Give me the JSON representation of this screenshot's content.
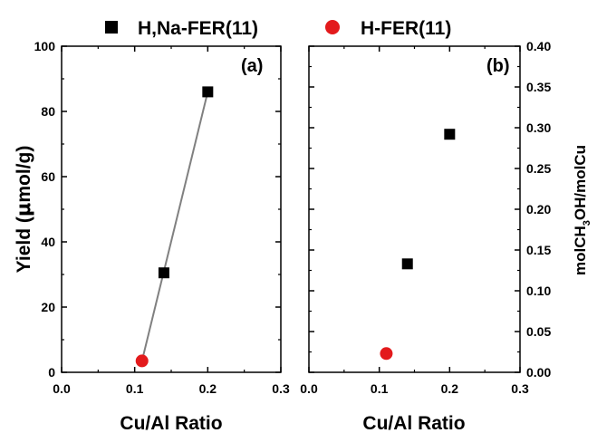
{
  "legend": [
    {
      "label": "H,Na-FER(11)",
      "marker": "square",
      "color": "#000000"
    },
    {
      "label": "H-FER(11)",
      "marker": "circle",
      "color": "#e31a1c"
    }
  ],
  "chart_data": [
    {
      "type": "scatter",
      "panel_label": "(a)",
      "xlabel": "Cu/Al Ratio",
      "ylabel_parts": [
        "Yield (",
        "μ",
        "mol/g)"
      ],
      "xlim": [
        0.0,
        0.3
      ],
      "ylim": [
        0,
        100
      ],
      "xticks": [
        "0.0",
        "0.1",
        "0.2",
        "0.3"
      ],
      "yticks": [
        "0",
        "20",
        "40",
        "60",
        "80",
        "100"
      ],
      "grid": false,
      "series": [
        {
          "name": "H,Na-FER(11)",
          "marker": "square",
          "color": "#000000",
          "points": [
            {
              "x": 0.14,
              "y": 30.5
            },
            {
              "x": 0.2,
              "y": 86
            }
          ]
        },
        {
          "name": "H-FER(11)",
          "marker": "circle",
          "color": "#e31a1c",
          "points": [
            {
              "x": 0.11,
              "y": 3.5
            }
          ]
        }
      ],
      "fit_line": {
        "color": "#808080",
        "x": [
          0.11,
          0.2
        ],
        "y": [
          3.5,
          86
        ]
      }
    },
    {
      "type": "scatter",
      "panel_label": "(b)",
      "xlabel": "Cu/Al Ratio",
      "ylabel_parts": [
        "molCH",
        "3",
        "OH/molCu"
      ],
      "xlim": [
        0.0,
        0.3
      ],
      "ylim": [
        0.0,
        0.4
      ],
      "xticks": [
        "0.0",
        "0.1",
        "0.2",
        "0.3"
      ],
      "yticks": [
        "0.00",
        "0.05",
        "0.10",
        "0.15",
        "0.20",
        "0.25",
        "0.30",
        "0.35",
        "0.40"
      ],
      "grid": false,
      "series": [
        {
          "name": "H,Na-FER(11)",
          "marker": "square",
          "color": "#000000",
          "points": [
            {
              "x": 0.14,
              "y": 0.133
            },
            {
              "x": 0.2,
              "y": 0.292
            }
          ]
        },
        {
          "name": "H-FER(11)",
          "marker": "circle",
          "color": "#e31a1c",
          "points": [
            {
              "x": 0.11,
              "y": 0.023
            }
          ]
        }
      ]
    }
  ]
}
